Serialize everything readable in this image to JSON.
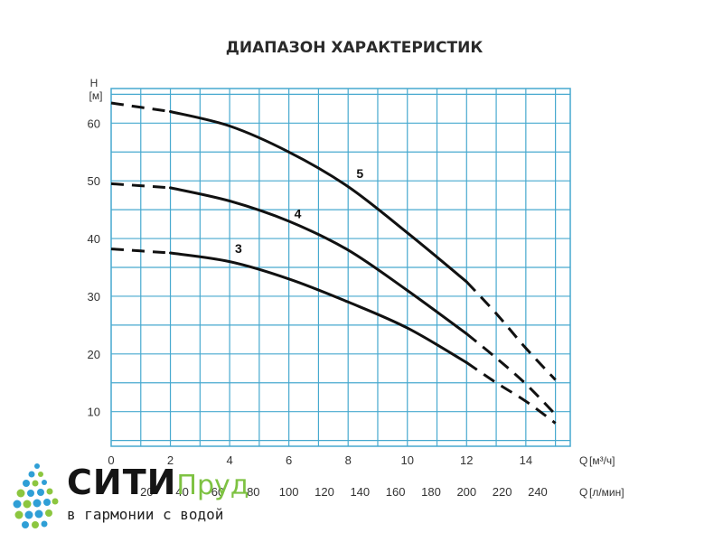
{
  "chart_data": {
    "type": "line",
    "title": "ДИАПАЗОН ХАРАКТЕРИСТИК",
    "ylabel": "H",
    "ylabel_unit": "[м]",
    "xlabel": "Q",
    "xlabel_unit": "[м³/ч]",
    "x2label": "Q",
    "x2label_unit": "[л/мин]",
    "xlim": [
      0,
      15.5
    ],
    "ylim": [
      4,
      66
    ],
    "grid": true,
    "x_ticks": [
      0,
      2,
      4,
      6,
      8,
      10,
      12,
      14
    ],
    "y_ticks": [
      10,
      20,
      30,
      40,
      50,
      60
    ],
    "x2_ticks": [
      {
        "x": 1.2,
        "label": "20"
      },
      {
        "x": 2.4,
        "label": "40"
      },
      {
        "x": 3.6,
        "label": "60"
      },
      {
        "x": 4.8,
        "label": "80"
      },
      {
        "x": 6.0,
        "label": "100"
      },
      {
        "x": 7.2,
        "label": "120"
      },
      {
        "x": 8.4,
        "label": "140"
      },
      {
        "x": 9.6,
        "label": "160"
      },
      {
        "x": 10.8,
        "label": "180"
      },
      {
        "x": 12.0,
        "label": "200"
      },
      {
        "x": 13.2,
        "label": "220"
      },
      {
        "x": 14.4,
        "label": "240"
      }
    ],
    "series": [
      {
        "name": "5",
        "solid": {
          "x": [
            2,
            4,
            6,
            8,
            10,
            12
          ],
          "y": [
            62,
            59.5,
            55,
            49,
            41,
            32.5
          ]
        },
        "dash_start": {
          "x": [
            0,
            2
          ],
          "y": [
            63.5,
            62
          ]
        },
        "dash_end": {
          "x": [
            12,
            13,
            14,
            15
          ],
          "y": [
            32.5,
            27,
            21,
            15.5
          ]
        }
      },
      {
        "name": "4",
        "solid": {
          "x": [
            2,
            4,
            6,
            8,
            10,
            12
          ],
          "y": [
            48.8,
            46.5,
            43,
            38,
            31,
            23.5
          ]
        },
        "dash_start": {
          "x": [
            0,
            2
          ],
          "y": [
            49.5,
            48.8
          ]
        },
        "dash_end": {
          "x": [
            12,
            13,
            14,
            15
          ],
          "y": [
            23.5,
            19.3,
            14.8,
            9.5
          ]
        }
      },
      {
        "name": "3",
        "solid": {
          "x": [
            2,
            4,
            6,
            8,
            10,
            12
          ],
          "y": [
            37.5,
            36,
            33,
            29,
            24.5,
            18.5
          ]
        },
        "dash_start": {
          "x": [
            0,
            2
          ],
          "y": [
            38.2,
            37.5
          ]
        },
        "dash_end": {
          "x": [
            12,
            13,
            14,
            15
          ],
          "y": [
            18.5,
            15,
            11.8,
            8
          ]
        }
      }
    ],
    "curve_labels": [
      {
        "text": "5",
        "x": 8.4,
        "y": 50.5
      },
      {
        "text": "4",
        "x": 6.3,
        "y": 43.5
      },
      {
        "text": "3",
        "x": 4.3,
        "y": 37.5
      }
    ],
    "colors": {
      "grid": "#47a9cf",
      "curve": "#111111",
      "text": "#333333"
    }
  },
  "logo": {
    "name_main": "СИТИ",
    "name_accent": "Пруд",
    "tagline": "в гармонии с водой",
    "colors": {
      "drop_blue": "#2f9fd6",
      "drop_green": "#8cc63f",
      "accent": "#7ec242"
    }
  }
}
